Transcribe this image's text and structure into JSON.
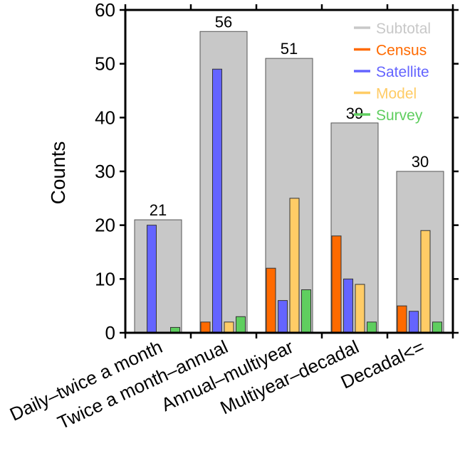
{
  "chart_data": {
    "type": "bar",
    "ylabel": "Counts",
    "ylim": [
      0,
      60
    ],
    "yticks": [
      0,
      10,
      20,
      30,
      40,
      50,
      60
    ],
    "grid": false,
    "legend_position": "top-right",
    "categories": [
      "Daily–twice a month",
      "Twice a month–annual",
      "Annual–multiyear",
      "Multiyear–decadal",
      "Decadal<="
    ],
    "series": [
      {
        "name": "Subtotal",
        "color": "#c8c8c8",
        "values": [
          21,
          56,
          51,
          39,
          30
        ]
      },
      {
        "name": "Census",
        "color": "#ff6a00",
        "values": [
          0,
          2,
          12,
          18,
          5
        ]
      },
      {
        "name": "Satellite",
        "color": "#6464ff",
        "values": [
          20,
          49,
          6,
          10,
          4
        ]
      },
      {
        "name": "Model",
        "color": "#ffcc66",
        "values": [
          0,
          2,
          25,
          9,
          19
        ]
      },
      {
        "name": "Survey",
        "color": "#5fce5f",
        "values": [
          1,
          3,
          8,
          2,
          2
        ]
      }
    ],
    "subtotal_labels": [
      "21",
      "56",
      "51",
      "39",
      "30"
    ]
  }
}
